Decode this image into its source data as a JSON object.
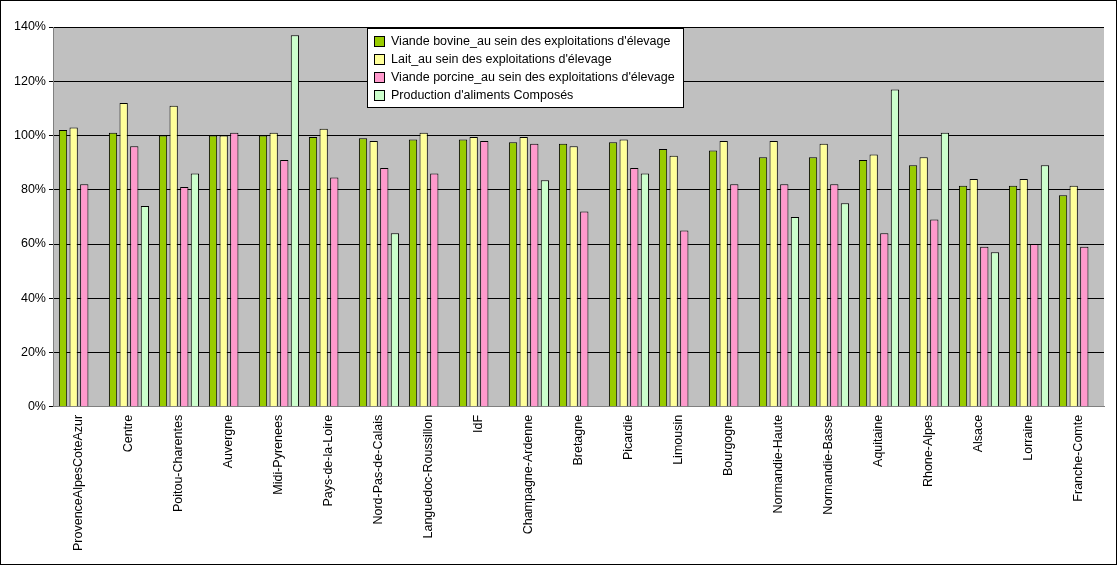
{
  "chart_data": {
    "type": "bar",
    "categories": [
      "ProvenceAlpesCoteAzur",
      "Centre",
      "Poitou-Charentes",
      "Auvergne",
      "Midi-Pyrenees",
      "Pays-de-la-Loire",
      "Nord-Pas-de-Calais",
      "Languedoc-Roussillon",
      "IdF",
      "Champagne-Ardenne",
      "Bretagne",
      "Picardie",
      "Limousin",
      "Bourgogne",
      "Normandie-Haute",
      "Normandie-Basse",
      "Aquitaine",
      "Rhone-Alpes",
      "Alsace",
      "Lorraine",
      "Franche-Comte"
    ],
    "series": [
      {
        "name": "Viande bovine_au sein des exploitations d'élevage",
        "color": "#99cc00",
        "values": [
          102,
          101,
          100,
          100,
          100,
          99.5,
          99,
          98.5,
          98.5,
          97.5,
          97,
          97.5,
          95,
          94.5,
          92,
          92,
          91,
          89,
          81.5,
          81.5,
          78
        ]
      },
      {
        "name": "Lait_au sein des exploitations d'élevage",
        "color": "#ffff99",
        "values": [
          103,
          112,
          111,
          100,
          101,
          102.5,
          98,
          101,
          99.5,
          99.5,
          96,
          98.5,
          92.5,
          98,
          98,
          97,
          93,
          92,
          84,
          84,
          81.5
        ]
      },
      {
        "name": "Viande porcine_au sein des exploitations d'élevage",
        "color": "#ff99cc",
        "values": [
          82,
          96,
          81,
          101,
          91,
          84.5,
          88,
          86,
          98,
          97,
          72,
          88,
          65,
          82,
          82,
          82,
          64,
          69,
          59,
          60,
          59
        ]
      },
      {
        "name": "Production d'aliments Composés",
        "color": "#ccffcc",
        "values": [
          null,
          74,
          86,
          null,
          137,
          null,
          64,
          null,
          null,
          83.5,
          null,
          86,
          null,
          null,
          70,
          75,
          117,
          101,
          57,
          89,
          null
        ]
      }
    ],
    "ylim": [
      0,
      140
    ],
    "yticks": [
      {
        "value": 0,
        "label": "0%"
      },
      {
        "value": 20,
        "label": "20%"
      },
      {
        "value": 40,
        "label": "40%"
      },
      {
        "value": 60,
        "label": "60%"
      },
      {
        "value": 80,
        "label": "80%"
      },
      {
        "value": 100,
        "label": "100%"
      },
      {
        "value": 120,
        "label": "120%"
      },
      {
        "value": 140,
        "label": "140%"
      }
    ],
    "grid": "y",
    "legend": "top"
  }
}
